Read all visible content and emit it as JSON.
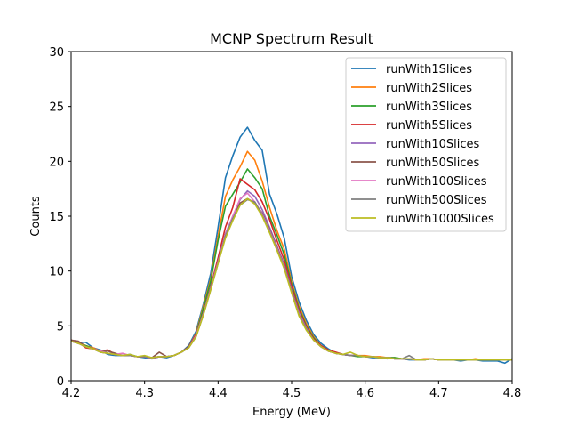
{
  "chart_data": {
    "type": "line",
    "title": "MCNP Spectrum Result",
    "xlabel": "Energy (MeV)",
    "ylabel": "Counts",
    "xlim": [
      4.2,
      4.8
    ],
    "ylim": [
      0,
      30
    ],
    "xticks": [
      "4.2",
      "4.3",
      "4.4",
      "4.5",
      "4.6",
      "4.7",
      "4.8"
    ],
    "yticks": [
      "0",
      "5",
      "10",
      "15",
      "20",
      "25",
      "30"
    ],
    "legend_position": "top-right",
    "x": [
      4.2,
      4.21,
      4.22,
      4.23,
      4.24,
      4.25,
      4.26,
      4.27,
      4.28,
      4.29,
      4.3,
      4.31,
      4.32,
      4.33,
      4.34,
      4.35,
      4.36,
      4.37,
      4.38,
      4.39,
      4.4,
      4.41,
      4.42,
      4.43,
      4.44,
      4.45,
      4.46,
      4.47,
      4.48,
      4.49,
      4.5,
      4.51,
      4.52,
      4.53,
      4.54,
      4.55,
      4.56,
      4.57,
      4.58,
      4.59,
      4.6,
      4.61,
      4.62,
      4.63,
      4.64,
      4.65,
      4.66,
      4.67,
      4.68,
      4.69,
      4.7,
      4.71,
      4.72,
      4.73,
      4.74,
      4.75,
      4.76,
      4.77,
      4.78,
      4.79,
      4.8
    ],
    "series": [
      {
        "name": "runWith1Slices",
        "color": "#1f77b4",
        "values": [
          3.6,
          3.5,
          3.5,
          3.0,
          2.8,
          2.4,
          2.3,
          2.3,
          2.4,
          2.2,
          2.1,
          2.0,
          2.2,
          2.1,
          2.3,
          2.6,
          3.2,
          4.5,
          7.0,
          9.8,
          14.0,
          18.5,
          20.5,
          22.2,
          23.1,
          21.9,
          21.0,
          17.0,
          15.2,
          13.0,
          9.5,
          7.2,
          5.5,
          4.2,
          3.4,
          2.9,
          2.5,
          2.4,
          2.3,
          2.3,
          2.2,
          2.1,
          2.1,
          2.0,
          2.1,
          2.0,
          1.9,
          1.9,
          1.9,
          2.0,
          1.9,
          1.9,
          1.9,
          1.8,
          1.9,
          1.9,
          1.8,
          1.8,
          1.8,
          1.6,
          2.0
        ]
      },
      {
        "name": "runWith2Slices",
        "color": "#ff7f0e",
        "values": [
          3.7,
          3.5,
          3.2,
          3.0,
          2.7,
          2.5,
          2.4,
          2.3,
          2.3,
          2.2,
          2.2,
          2.1,
          2.2,
          2.2,
          2.3,
          2.6,
          3.1,
          4.3,
          6.8,
          9.3,
          13.2,
          16.8,
          18.3,
          19.5,
          20.9,
          20.1,
          18.2,
          15.8,
          13.7,
          12.0,
          9.0,
          6.8,
          5.2,
          4.0,
          3.2,
          2.8,
          2.5,
          2.4,
          2.3,
          2.3,
          2.3,
          2.2,
          2.2,
          2.1,
          2.1,
          2.0,
          2.0,
          1.9,
          2.0,
          2.0,
          1.9,
          1.9,
          1.9,
          1.9,
          1.9,
          2.0,
          1.9,
          1.9,
          1.9,
          1.9,
          1.9
        ]
      },
      {
        "name": "runWith3Slices",
        "color": "#2ca02c",
        "values": [
          3.6,
          3.4,
          3.2,
          2.9,
          2.7,
          2.5,
          2.4,
          2.3,
          2.3,
          2.2,
          2.2,
          2.1,
          2.2,
          2.2,
          2.3,
          2.6,
          3.0,
          4.2,
          6.6,
          9.1,
          12.8,
          15.9,
          17.0,
          18.1,
          19.3,
          18.5,
          17.5,
          15.0,
          13.3,
          11.5,
          8.8,
          6.6,
          5.0,
          3.9,
          3.2,
          2.8,
          2.5,
          2.4,
          2.3,
          2.2,
          2.2,
          2.2,
          2.1,
          2.1,
          2.1,
          2.0,
          2.0,
          1.9,
          1.9,
          2.0,
          1.9,
          1.9,
          1.9,
          1.9,
          1.9,
          1.9,
          1.9,
          1.9,
          1.9,
          1.9,
          1.9
        ]
      },
      {
        "name": "runWith5Slices",
        "color": "#d62728",
        "values": [
          3.7,
          3.5,
          3.0,
          2.9,
          2.7,
          2.8,
          2.4,
          2.3,
          2.3,
          2.2,
          2.2,
          2.1,
          2.2,
          2.2,
          2.3,
          2.6,
          3.1,
          4.2,
          6.2,
          8.6,
          11.2,
          14.0,
          15.8,
          18.4,
          17.9,
          17.4,
          16.3,
          14.7,
          12.8,
          11.0,
          8.6,
          6.4,
          4.9,
          3.8,
          3.2,
          2.8,
          2.6,
          2.4,
          2.3,
          2.3,
          2.2,
          2.2,
          2.1,
          2.1,
          2.0,
          2.0,
          2.0,
          1.9,
          1.9,
          2.0,
          1.9,
          1.9,
          1.9,
          1.9,
          1.9,
          1.9,
          1.9,
          1.9,
          1.9,
          1.9,
          1.9
        ]
      },
      {
        "name": "runWith10Slices",
        "color": "#9467bd",
        "values": [
          3.6,
          3.4,
          3.1,
          2.9,
          2.6,
          2.5,
          2.4,
          2.3,
          2.3,
          2.2,
          2.2,
          2.0,
          2.2,
          2.2,
          2.3,
          2.6,
          3.0,
          4.1,
          6.2,
          8.5,
          10.9,
          13.4,
          15.0,
          16.5,
          17.3,
          16.8,
          15.6,
          14.0,
          12.3,
          10.6,
          8.3,
          6.2,
          4.8,
          3.7,
          3.1,
          2.7,
          2.5,
          2.4,
          2.3,
          2.3,
          2.2,
          2.2,
          2.1,
          2.1,
          2.0,
          2.0,
          2.0,
          1.9,
          1.9,
          2.0,
          1.9,
          1.9,
          1.9,
          1.9,
          1.9,
          1.9,
          1.9,
          1.9,
          1.9,
          1.9,
          1.9
        ]
      },
      {
        "name": "runWith50Slices",
        "color": "#8c564b",
        "values": [
          3.7,
          3.6,
          3.1,
          2.9,
          2.7,
          2.7,
          2.5,
          2.3,
          2.3,
          2.2,
          2.2,
          2.1,
          2.6,
          2.2,
          2.3,
          2.6,
          3.1,
          4.1,
          6.2,
          8.5,
          10.8,
          13.3,
          14.9,
          16.2,
          16.6,
          16.2,
          15.3,
          13.8,
          12.2,
          10.5,
          8.2,
          6.1,
          4.7,
          3.7,
          3.1,
          2.7,
          2.5,
          2.4,
          2.3,
          2.3,
          2.2,
          2.2,
          2.1,
          2.1,
          2.0,
          2.0,
          2.0,
          1.9,
          1.9,
          2.0,
          1.9,
          1.9,
          1.9,
          1.9,
          1.9,
          1.9,
          1.9,
          1.9,
          1.9,
          1.9,
          1.9
        ]
      },
      {
        "name": "runWith100Slices",
        "color": "#e377c2",
        "values": [
          3.6,
          3.4,
          3.1,
          2.9,
          2.7,
          2.5,
          2.4,
          2.5,
          2.3,
          2.2,
          2.2,
          2.1,
          2.2,
          2.2,
          2.3,
          2.6,
          3.0,
          4.1,
          6.1,
          8.4,
          10.8,
          13.3,
          15.0,
          16.6,
          17.1,
          16.3,
          15.2,
          13.7,
          12.1,
          10.4,
          8.1,
          6.1,
          4.7,
          3.7,
          3.1,
          2.7,
          2.5,
          2.4,
          2.3,
          2.3,
          2.2,
          2.2,
          2.1,
          2.1,
          2.0,
          2.0,
          2.0,
          1.9,
          1.9,
          2.0,
          1.9,
          1.9,
          1.9,
          1.9,
          1.9,
          1.9,
          1.9,
          1.9,
          1.9,
          1.9,
          1.9
        ]
      },
      {
        "name": "runWith500Slices",
        "color": "#7f7f7f",
        "values": [
          3.6,
          3.4,
          3.1,
          2.9,
          2.6,
          2.5,
          2.4,
          2.3,
          2.3,
          2.2,
          2.2,
          2.1,
          2.2,
          2.2,
          2.3,
          2.6,
          3.0,
          4.0,
          6.0,
          8.3,
          10.7,
          13.2,
          14.8,
          16.0,
          16.5,
          16.3,
          15.1,
          13.6,
          12.0,
          10.3,
          8.1,
          6.0,
          4.7,
          3.7,
          3.1,
          2.7,
          2.5,
          2.4,
          2.3,
          2.3,
          2.2,
          2.2,
          2.1,
          2.1,
          2.0,
          2.0,
          2.3,
          1.9,
          1.9,
          2.0,
          1.9,
          1.9,
          1.9,
          1.9,
          1.9,
          1.9,
          1.9,
          1.9,
          1.9,
          1.9,
          1.9
        ]
      },
      {
        "name": "runWith1000Slices",
        "color": "#bcbd22",
        "values": [
          3.6,
          3.4,
          3.1,
          2.9,
          2.6,
          2.5,
          2.4,
          2.3,
          2.4,
          2.2,
          2.3,
          2.1,
          2.2,
          2.2,
          2.3,
          2.6,
          3.0,
          4.0,
          6.0,
          8.3,
          10.7,
          13.0,
          14.6,
          16.0,
          16.6,
          16.1,
          15.0,
          13.5,
          11.9,
          10.2,
          8.0,
          5.9,
          4.6,
          3.7,
          3.1,
          2.7,
          2.5,
          2.4,
          2.6,
          2.3,
          2.2,
          2.2,
          2.1,
          2.1,
          2.0,
          2.0,
          2.0,
          1.9,
          1.9,
          2.0,
          1.9,
          1.9,
          1.9,
          1.9,
          1.9,
          1.9,
          1.9,
          1.9,
          1.9,
          1.9,
          1.9
        ]
      }
    ]
  }
}
